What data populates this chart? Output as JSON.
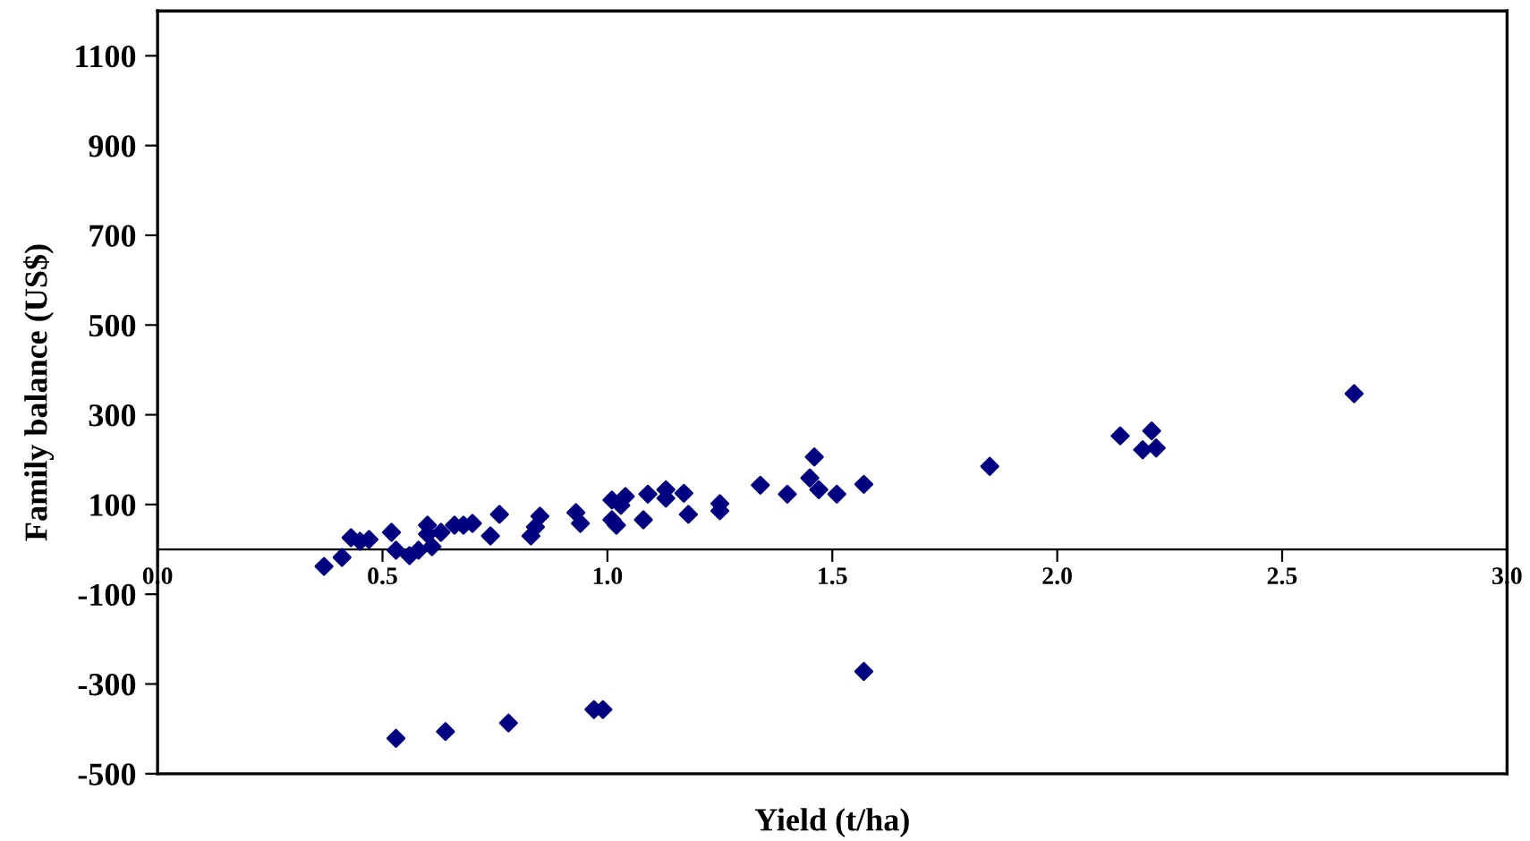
{
  "chart_data": {
    "type": "scatter",
    "xlabel": "Yield (t/ha)",
    "ylabel": "Family balance (US$)",
    "x": [
      0.37,
      0.41,
      0.43,
      0.45,
      0.47,
      0.52,
      0.53,
      0.56,
      0.58,
      0.6,
      0.6,
      0.61,
      0.63,
      0.66,
      0.68,
      0.7,
      0.74,
      0.76,
      0.83,
      0.84,
      0.85,
      0.93,
      0.94,
      1.01,
      1.01,
      1.02,
      1.03,
      1.04,
      1.09,
      1.08,
      1.13,
      1.13,
      1.17,
      1.18,
      1.25,
      1.25,
      1.34,
      1.4,
      1.45,
      1.46,
      1.47,
      1.51,
      1.57,
      1.85,
      2.14,
      2.19,
      2.21,
      2.22,
      2.66,
      0.53,
      0.64,
      0.78,
      0.97,
      0.99,
      1.57
    ],
    "values": [
      -38,
      -18,
      26,
      18,
      22,
      38,
      -2,
      -14,
      -2,
      54,
      34,
      6,
      38,
      54,
      54,
      58,
      30,
      78,
      30,
      50,
      74,
      82,
      58,
      66,
      110,
      54,
      98,
      118,
      123,
      66,
      133,
      114,
      125,
      78,
      102,
      86,
      143,
      123,
      159,
      206,
      133,
      123,
      145,
      185,
      253,
      222,
      264,
      226,
      347,
      -421,
      -406,
      -387,
      -357,
      -357,
      -272
    ],
    "color": "#000080",
    "marker": "diamond",
    "xlim": [
      0,
      3
    ],
    "xticks": [
      {
        "value": 0,
        "label": "0.0"
      },
      {
        "value": 0.5,
        "label": "0.5"
      },
      {
        "value": 1,
        "label": "1.0"
      },
      {
        "value": 1.5,
        "label": "1.5"
      },
      {
        "value": 2,
        "label": "2.0"
      },
      {
        "value": 2.5,
        "label": "2.5"
      },
      {
        "value": 3,
        "label": "3.0"
      }
    ],
    "ylim": [
      -500,
      1200
    ],
    "yticks": [
      -500,
      -300,
      -100,
      100,
      300,
      500,
      700,
      900,
      1100
    ],
    "grid": false,
    "legend": false
  }
}
